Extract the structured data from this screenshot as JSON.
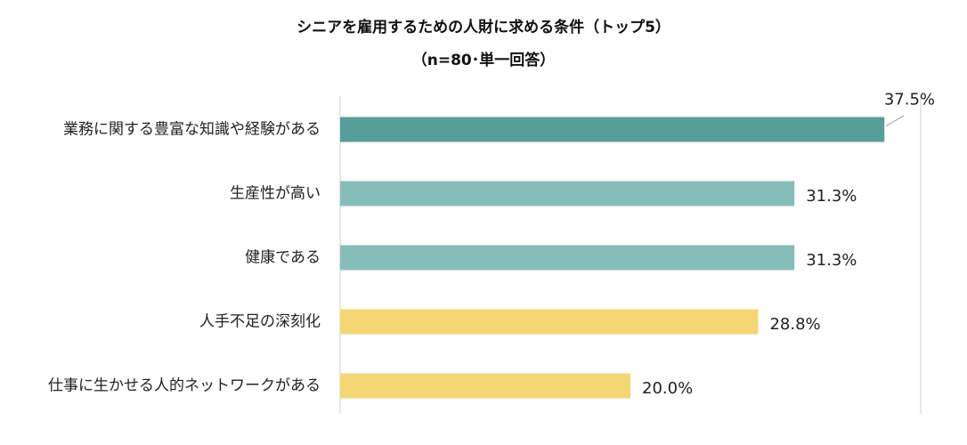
{
  "chart_data": {
    "type": "bar",
    "orientation": "horizontal",
    "title": "シニアを雇用するための人財に求める条件（トップ5）",
    "subtitle": "（n=80･単一回答）",
    "categories": [
      "業務に関する豊富な知識や経験がある",
      "生産性が高い",
      "健康である",
      "人手不足の深刻化",
      "仕事に生かせる人的ネットワークがある"
    ],
    "values": [
      37.5,
      31.3,
      31.3,
      28.8,
      20.0
    ],
    "value_labels": [
      "37.5%",
      "31.3%",
      "31.3%",
      "28.8%",
      "20.0%"
    ],
    "bar_colors": [
      "#559e99",
      "#86bdb8",
      "#86bdb8",
      "#f5d675",
      "#f5d675"
    ],
    "xlim": [
      0,
      40
    ],
    "grid": false,
    "legend": "none"
  }
}
